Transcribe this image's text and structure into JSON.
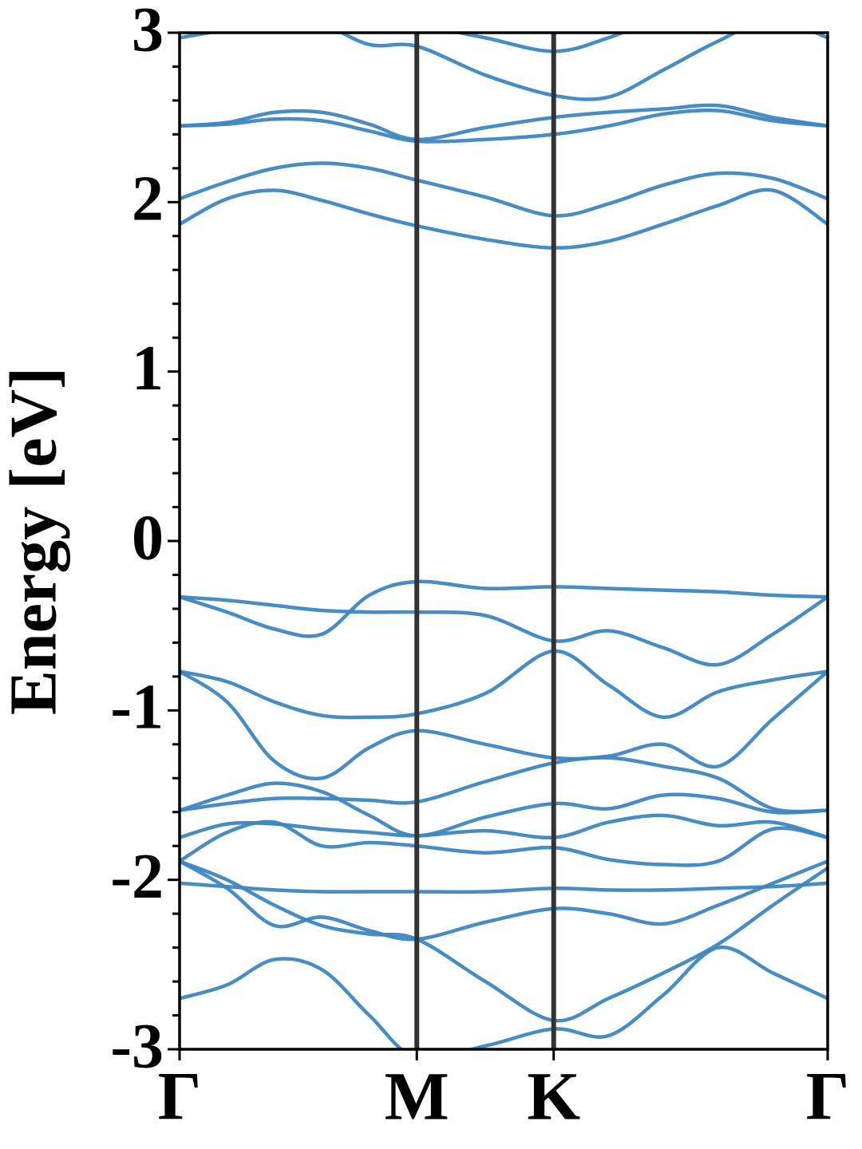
{
  "chart_data": {
    "type": "line",
    "ylabel": "Energy [eV]",
    "color": "#3d87c0",
    "x": [
      0,
      0.2,
      0.4,
      0.6,
      0.8,
      1,
      1.289,
      1.577,
      1.808,
      2.039,
      2.27,
      2.501,
      2.732
    ],
    "xlim": [
      0,
      2.732
    ],
    "xticks": [
      {
        "value": 0,
        "label": "Γ"
      },
      {
        "value": 1,
        "label": "M"
      },
      {
        "value": 1.577,
        "label": "K"
      },
      {
        "value": 2.732,
        "label": "Γ"
      }
    ],
    "ylim": [
      -3,
      3
    ],
    "yticks": [
      -3,
      -2,
      -1,
      0,
      1,
      2,
      3
    ],
    "yminorticks": [
      -2.8,
      -2.6,
      -2.4,
      -2.2,
      -1.8,
      -1.6,
      -1.4,
      -1.2,
      -0.8,
      -0.6,
      -0.4,
      -0.2,
      0.2,
      0.4,
      0.6,
      0.8,
      1.2,
      1.4,
      1.6,
      1.8,
      2.2,
      2.4,
      2.6,
      2.8
    ],
    "series": [
      {
        "values": [
          3.2,
          3.2,
          3.2,
          3.15,
          3.1,
          3.05,
          2.97,
          2.89,
          2.97,
          3.1,
          3.2,
          3.2,
          3.2
        ]
      },
      {
        "values": [
          2.97,
          3.02,
          3.08,
          3.05,
          2.93,
          2.92,
          2.75,
          2.63,
          2.62,
          2.78,
          2.95,
          3.08,
          2.97
        ]
      },
      {
        "values": [
          2.45,
          2.47,
          2.53,
          2.53,
          2.46,
          2.37,
          2.44,
          2.5,
          2.53,
          2.55,
          2.57,
          2.5,
          2.45
        ]
      },
      {
        "values": [
          2.45,
          2.46,
          2.49,
          2.48,
          2.42,
          2.36,
          2.37,
          2.4,
          2.45,
          2.52,
          2.54,
          2.48,
          2.45
        ]
      },
      {
        "values": [
          2.02,
          2.12,
          2.2,
          2.23,
          2.2,
          2.13,
          2.03,
          1.92,
          1.99,
          2.1,
          2.17,
          2.14,
          2.02
        ]
      },
      {
        "values": [
          1.87,
          2.02,
          2.07,
          2.01,
          1.93,
          1.86,
          1.78,
          1.73,
          1.77,
          1.87,
          1.98,
          2.07,
          1.87
        ]
      },
      {
        "values": [
          -0.33,
          -0.42,
          -0.52,
          -0.55,
          -0.32,
          -0.24,
          -0.28,
          -0.27,
          -0.28,
          -0.29,
          -0.3,
          -0.32,
          -0.33
        ]
      },
      {
        "values": [
          -0.33,
          -0.35,
          -0.38,
          -0.41,
          -0.42,
          -0.42,
          -0.44,
          -0.59,
          -0.53,
          -0.63,
          -0.73,
          -0.55,
          -0.33
        ]
      },
      {
        "values": [
          -0.77,
          -0.83,
          -0.95,
          -1.03,
          -1.04,
          -1.02,
          -0.9,
          -0.65,
          -0.85,
          -1.04,
          -0.89,
          -0.82,
          -0.77
        ]
      },
      {
        "values": [
          -0.77,
          -0.95,
          -1.3,
          -1.4,
          -1.22,
          -1.12,
          -1.2,
          -1.28,
          -1.27,
          -1.2,
          -1.33,
          -1.05,
          -0.77
        ]
      },
      {
        "values": [
          -1.59,
          -1.55,
          -1.52,
          -1.52,
          -1.53,
          -1.54,
          -1.42,
          -1.31,
          -1.28,
          -1.33,
          -1.4,
          -1.58,
          -1.59
        ]
      },
      {
        "values": [
          -1.59,
          -1.5,
          -1.43,
          -1.48,
          -1.62,
          -1.74,
          -1.63,
          -1.55,
          -1.58,
          -1.5,
          -1.52,
          -1.6,
          -1.59
        ]
      },
      {
        "values": [
          -1.75,
          -1.67,
          -1.67,
          -1.7,
          -1.72,
          -1.74,
          -1.71,
          -1.75,
          -1.66,
          -1.62,
          -1.68,
          -1.66,
          -1.75
        ]
      },
      {
        "values": [
          -1.89,
          -1.72,
          -1.66,
          -1.8,
          -1.78,
          -1.8,
          -1.84,
          -1.81,
          -1.88,
          -1.91,
          -1.89,
          -1.7,
          -1.75
        ]
      },
      {
        "values": [
          -2.02,
          -2.04,
          -2.06,
          -2.07,
          -2.07,
          -2.07,
          -2.07,
          -2.05,
          -2.06,
          -2.06,
          -2.05,
          -2.04,
          -2.02
        ]
      },
      {
        "values": [
          -1.89,
          -2.05,
          -2.27,
          -2.22,
          -2.3,
          -2.35,
          -2.25,
          -2.17,
          -2.2,
          -2.26,
          -2.15,
          -2.02,
          -1.89
        ]
      },
      {
        "values": [
          -1.89,
          -2.0,
          -2.15,
          -2.27,
          -2.32,
          -2.35,
          -2.6,
          -2.83,
          -2.7,
          -2.55,
          -2.38,
          -2.15,
          -1.93
        ]
      },
      {
        "values": [
          -2.7,
          -2.62,
          -2.47,
          -2.53,
          -2.8,
          -3.05,
          -2.98,
          -2.88,
          -2.92,
          -2.68,
          -2.4,
          -2.55,
          -2.7
        ]
      }
    ]
  }
}
